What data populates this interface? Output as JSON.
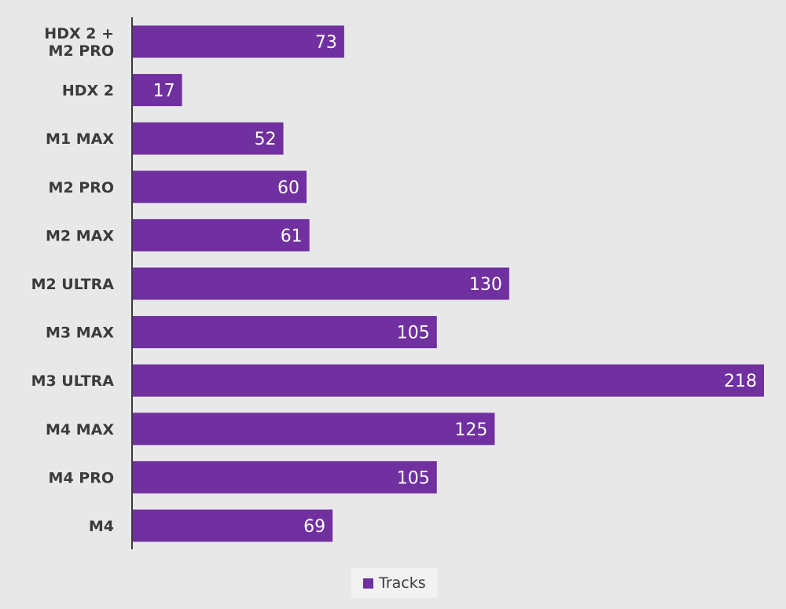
{
  "chart_data": {
    "type": "bar",
    "orientation": "horizontal",
    "categories": [
      "HDX 2 + M2 PRO",
      "HDX 2",
      "M1 MAX",
      "M2 PRO",
      "M2 MAX",
      "M2 ULTRA",
      "M3 MAX",
      "M3 ULTRA",
      "M4 MAX",
      "M4 PRO",
      "M4"
    ],
    "category_lines": [
      [
        "HDX 2 +",
        "M2 PRO"
      ],
      [
        "HDX 2"
      ],
      [
        "M1 MAX"
      ],
      [
        "M2 PRO"
      ],
      [
        "M2 MAX"
      ],
      [
        "M2 ULTRA"
      ],
      [
        "M3 MAX"
      ],
      [
        "M3 ULTRA"
      ],
      [
        "M4 MAX"
      ],
      [
        "M4 PRO"
      ],
      [
        "M4"
      ]
    ],
    "series": [
      {
        "name": "Tracks",
        "values": [
          73,
          17,
          52,
          60,
          61,
          130,
          105,
          218,
          125,
          105,
          69
        ]
      }
    ],
    "xlim": [
      0,
      218
    ],
    "grid": false,
    "legend_position": "bottom-center",
    "data_labels": "inside-end",
    "colors": {
      "bar": "#7030a0",
      "background": "#e9e8e9",
      "axis": "#3b3b3b",
      "label": "#3b3b3b",
      "value_label": "#ffffff"
    }
  }
}
